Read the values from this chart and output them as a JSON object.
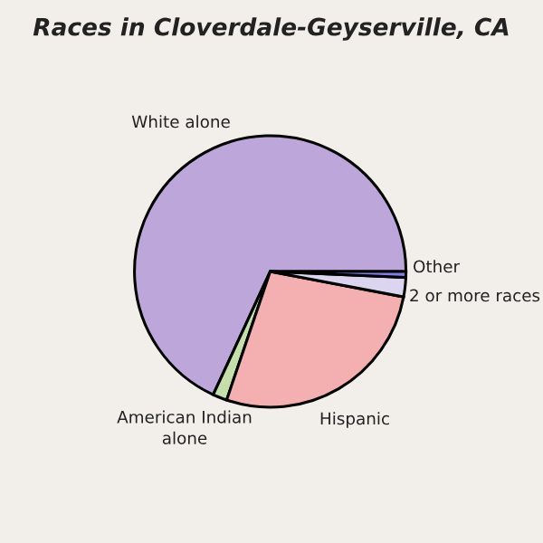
{
  "chart_data": {
    "type": "pie",
    "title": "Races in Cloverdale-Geyserville, CA",
    "categories": [
      "White alone",
      "American Indian alone",
      "Hispanic",
      "2 or more races",
      "Other"
    ],
    "values": [
      68.1,
      1.7,
      27.2,
      2.3,
      0.7
    ],
    "colors": [
      "#bca6da",
      "#c5dfaa",
      "#f4b0b0",
      "#dcd5f0",
      "#7f7fef"
    ]
  }
}
